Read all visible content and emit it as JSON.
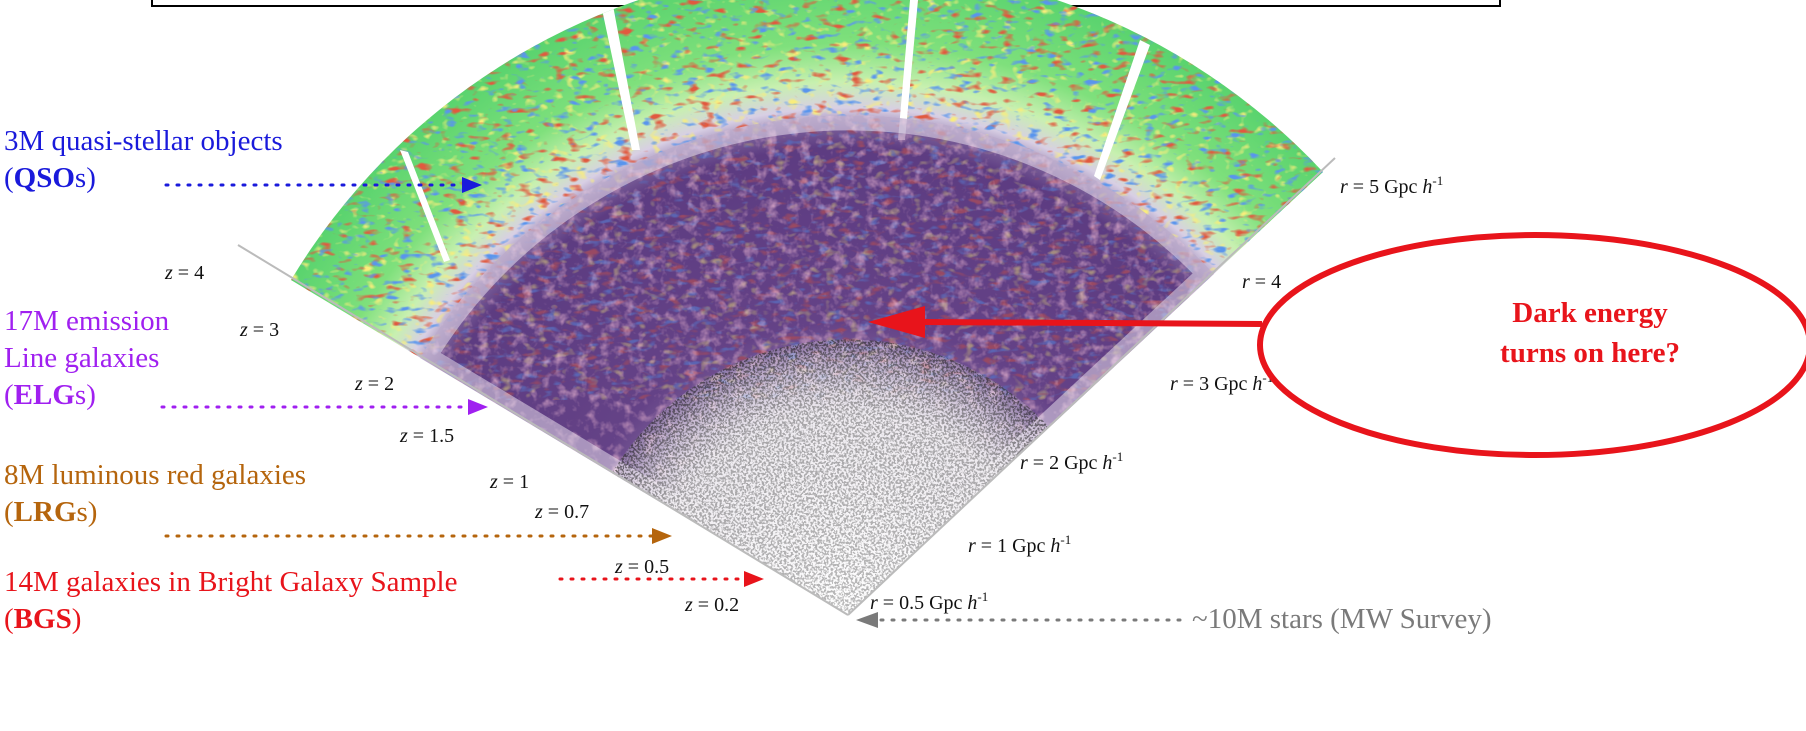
{
  "tracers": [
    {
      "lines": [
        "3M quasi-stellar objects"
      ],
      "abbr": [
        "(",
        "QSO",
        "s)"
      ]
    },
    {
      "lines": [
        "17M emission",
        "Line galaxies"
      ],
      "abbr": [
        "(",
        "ELG",
        "s)"
      ]
    },
    {
      "lines": [
        "8M luminous red galaxies"
      ],
      "abbr": [
        "(",
        "LRG",
        "s)"
      ]
    },
    {
      "lines": [
        "14M galaxies in Bright Galaxy Sample"
      ],
      "abbr": [
        "(",
        "BGS",
        ")"
      ]
    }
  ],
  "stars": "~10M stars (MW Survey)",
  "redshift_labels": [
    [
      "z",
      " = 4"
    ],
    [
      "z",
      " = 3"
    ],
    [
      "z",
      " = 2"
    ],
    [
      "z",
      " = 1.5"
    ],
    [
      "z",
      " = 1"
    ],
    [
      "z",
      " = 0.7"
    ],
    [
      "z",
      " = 0.5"
    ],
    [
      "z",
      " = 0.2"
    ]
  ],
  "distance_labels": [
    [
      "r",
      " = 5 Gpc ",
      "h",
      "-1"
    ],
    [
      "r",
      " = 4"
    ],
    [
      "r",
      " = 3 Gpc ",
      "h",
      "-1"
    ],
    [
      "r",
      " = 2 Gpc ",
      "h",
      "-1"
    ],
    [
      "r",
      " = 1 Gpc ",
      "h",
      "-1"
    ],
    [
      "r",
      " = 0.5 Gpc ",
      "h",
      "-1"
    ]
  ],
  "callout": [
    "Dark energy",
    "turns on here?"
  ]
}
